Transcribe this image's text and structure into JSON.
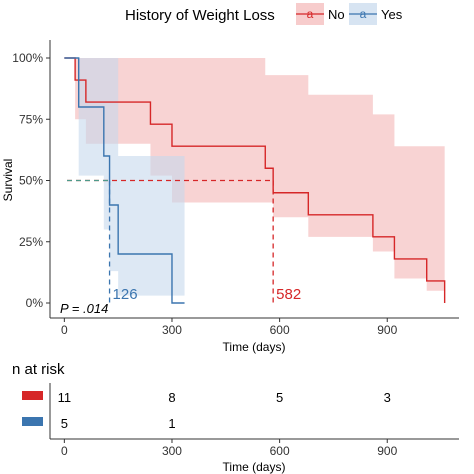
{
  "chart_data": {
    "type": "line",
    "subtype": "kaplan-meier survival curve with confidence bands and risk table",
    "legend": {
      "title": "History of Weight Loss",
      "placement": "top",
      "glyph": "a"
    },
    "xlabel": "Time (days)",
    "ylabel": "Survival",
    "xlim": [
      -40,
      1100
    ],
    "ylim": [
      0,
      1
    ],
    "x_ticks": [
      0,
      300,
      600,
      900
    ],
    "x_tick_labels": [
      "0",
      "300",
      "600",
      "900"
    ],
    "y_ticks": [
      0,
      0.25,
      0.5,
      0.75,
      1.0
    ],
    "y_tick_labels": [
      "0%",
      "25%",
      "50%",
      "75%",
      "100%"
    ],
    "pvalue_text": "P = .014",
    "grid": false,
    "series": [
      {
        "name": "No",
        "color": "#d62728",
        "fill": "#f4b6b6",
        "median_label": "582",
        "median_x": 582,
        "times": [
          0,
          30,
          60,
          125,
          240,
          300,
          560,
          582,
          680,
          860,
          920,
          1010,
          1060
        ],
        "survival": [
          1.0,
          0.91,
          0.82,
          0.82,
          0.73,
          0.64,
          0.55,
          0.45,
          0.36,
          0.27,
          0.18,
          0.09,
          0.0
        ],
        "upper": [
          1.0,
          1.0,
          1.0,
          1.0,
          1.0,
          1.0,
          0.93,
          0.93,
          0.85,
          0.77,
          0.64,
          0.64,
          0.64
        ],
        "lower": [
          1.0,
          0.75,
          0.65,
          0.65,
          0.52,
          0.41,
          0.41,
          0.35,
          0.27,
          0.21,
          0.1,
          0.05,
          0.05
        ],
        "end_x": 1060
      },
      {
        "name": "Yes",
        "color": "#3b75af",
        "fill": "#c6d9ec",
        "median_label": "126",
        "median_x": 126,
        "times": [
          0,
          40,
          110,
          126,
          150,
          185,
          300
        ],
        "survival": [
          1.0,
          0.8,
          0.6,
          0.4,
          0.2,
          0.2,
          0.0
        ],
        "upper": [
          1.0,
          1.0,
          1.0,
          1.0,
          0.6,
          0.6,
          0.6
        ],
        "lower": [
          1.0,
          0.52,
          0.3,
          0.13,
          0.03,
          0.03,
          0.03
        ],
        "end_x": 335
      }
    ],
    "median_survival_line": 0.5,
    "risk_table": {
      "title": "n at risk",
      "times": [
        0,
        300,
        600,
        900
      ],
      "tick_labels": [
        "0",
        "300",
        "600",
        "900"
      ],
      "xlabel": "Time (days)",
      "rows": [
        {
          "name": "No",
          "color": "#d62728",
          "counts": [
            "11",
            "8",
            "5",
            "3"
          ]
        },
        {
          "name": "Yes",
          "color": "#3b75af",
          "counts": [
            "5",
            "1",
            "",
            ""
          ]
        }
      ]
    }
  }
}
